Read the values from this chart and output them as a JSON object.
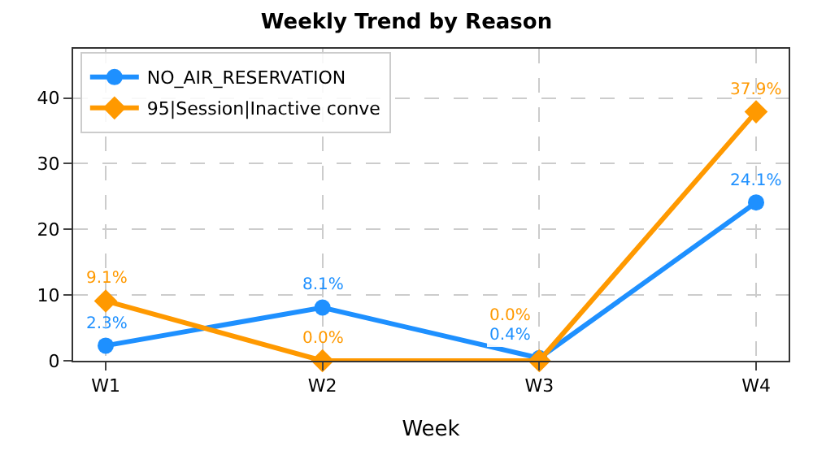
{
  "chart_data": {
    "type": "line",
    "title": "Weekly Trend by Reason",
    "xlabel": "Week",
    "categories": [
      "W1",
      "W2",
      "W3",
      "W4"
    ],
    "series": [
      {
        "name": "NO_AIR_RESERVATION",
        "color": "#1e90ff",
        "marker": "circle",
        "values": [
          2.3,
          8.1,
          0.4,
          24.1
        ],
        "value_labels": [
          "2.3%",
          "8.1%",
          "0.4%",
          "24.1%"
        ]
      },
      {
        "name": "95|Session|Inactive conve",
        "color": "#ff9900",
        "marker": "diamond",
        "values": [
          9.1,
          0.0,
          0.0,
          37.9
        ],
        "value_labels": [
          "9.1%",
          "0.0%",
          "0.0%",
          "37.9%"
        ]
      }
    ],
    "ylim": [
      0,
      47.5
    ],
    "yticks": [
      0,
      10,
      20,
      30,
      40
    ],
    "grid": true,
    "legend": "top left",
    "line_style": "solid"
  }
}
